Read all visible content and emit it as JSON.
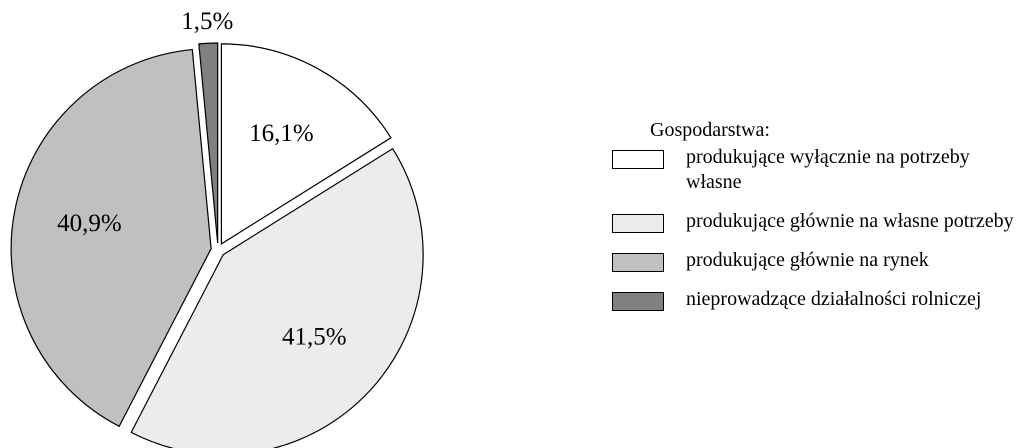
{
  "chart_data": {
    "type": "pie",
    "legend_title": "Gospodarstwa:",
    "categories": [
      "produkujące wyłącznie na potrzeby własne",
      "produkujące głównie na własne potrzeby",
      "produkujące głównie na rynek",
      "nieprowadzące działalności rolniczej"
    ],
    "values": [
      16.1,
      41.5,
      40.9,
      1.5
    ],
    "value_labels": [
      "16,1%",
      "41,5%",
      "40,9%",
      "1,5%"
    ],
    "colors": [
      "#ffffff",
      "#ececec",
      "#c0c0c0",
      "#808080"
    ]
  }
}
